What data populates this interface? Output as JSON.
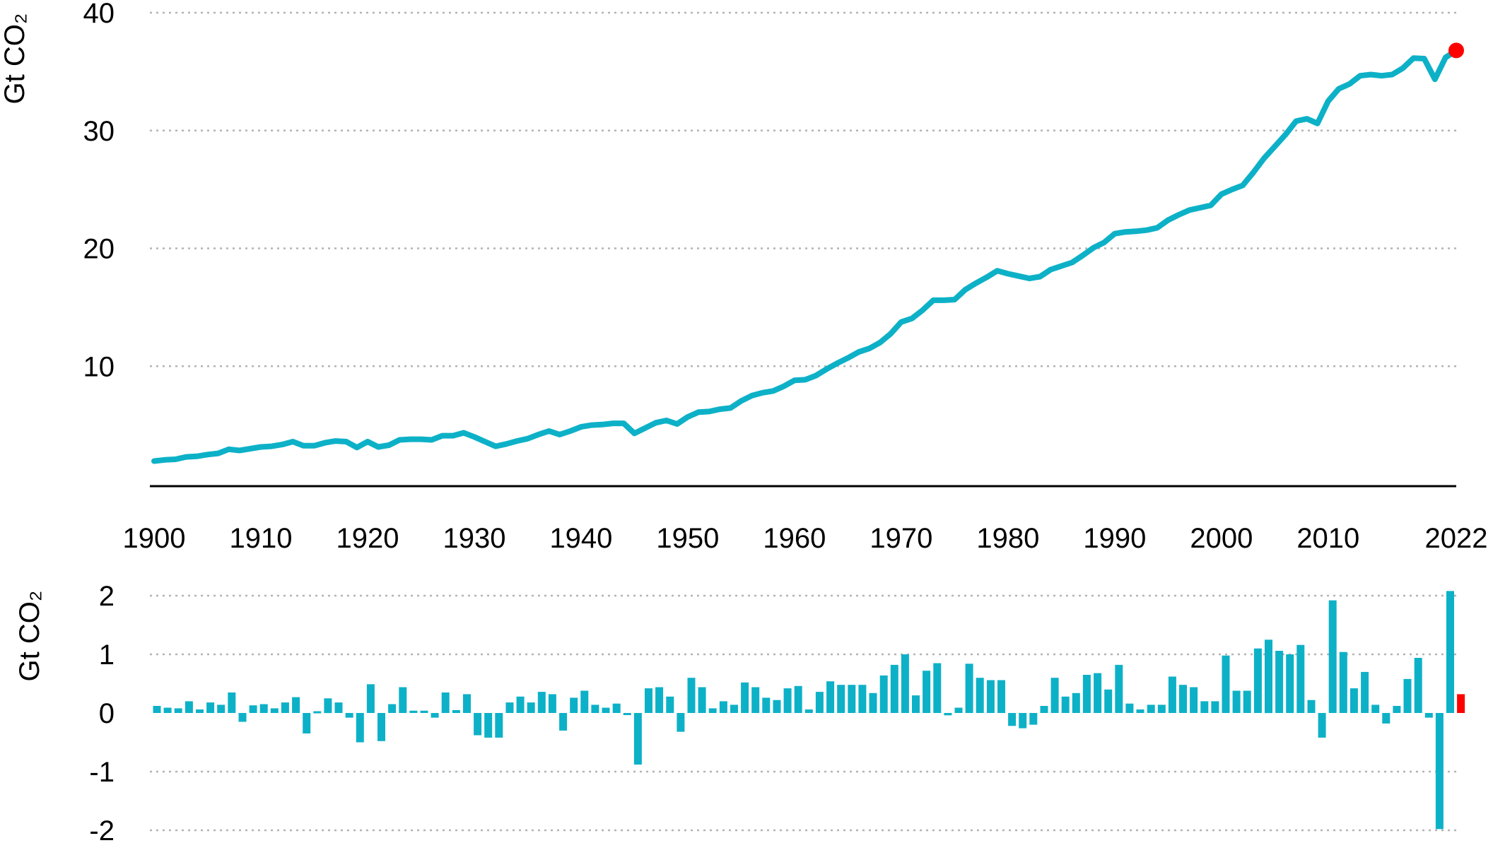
{
  "chart_data": [
    {
      "type": "line",
      "ylabel": "Gt CO₂",
      "ylim": [
        0,
        40
      ],
      "yticks": [
        10,
        20,
        30,
        40
      ],
      "xlim": [
        1900,
        2022
      ],
      "xticks": [
        "1900",
        "1910",
        "1920",
        "1930",
        "1940",
        "1950",
        "1960",
        "1970",
        "1980",
        "1990",
        "2000",
        "2010",
        "2022"
      ],
      "grid": true,
      "series": [
        {
          "color": "#0db1c7",
          "x": [
            1900,
            1901,
            1902,
            1903,
            1904,
            1905,
            1906,
            1907,
            1908,
            1909,
            1910,
            1911,
            1912,
            1913,
            1914,
            1915,
            1916,
            1917,
            1918,
            1919,
            1920,
            1921,
            1922,
            1923,
            1924,
            1925,
            1926,
            1927,
            1928,
            1929,
            1930,
            1931,
            1932,
            1933,
            1934,
            1935,
            1936,
            1937,
            1938,
            1939,
            1940,
            1941,
            1942,
            1943,
            1944,
            1945,
            1946,
            1947,
            1948,
            1949,
            1950,
            1951,
            1952,
            1953,
            1954,
            1955,
            1956,
            1957,
            1958,
            1959,
            1960,
            1961,
            1962,
            1963,
            1964,
            1965,
            1966,
            1967,
            1968,
            1969,
            1970,
            1971,
            1972,
            1973,
            1974,
            1975,
            1976,
            1977,
            1978,
            1979,
            1980,
            1981,
            1982,
            1983,
            1984,
            1985,
            1986,
            1987,
            1988,
            1989,
            1990,
            1991,
            1992,
            1993,
            1994,
            1995,
            1996,
            1997,
            1998,
            1999,
            2000,
            2001,
            2002,
            2003,
            2004,
            2005,
            2006,
            2007,
            2008,
            2009,
            2010,
            2011,
            2012,
            2013,
            2014,
            2015,
            2016,
            2017,
            2018,
            2019,
            2020,
            2021
          ],
          "values": [
            1.95,
            2.05,
            2.1,
            2.3,
            2.35,
            2.5,
            2.6,
            2.95,
            2.85,
            3.0,
            3.15,
            3.2,
            3.35,
            3.6,
            3.25,
            3.25,
            3.5,
            3.65,
            3.6,
            3.1,
            3.6,
            3.15,
            3.3,
            3.75,
            3.8,
            3.8,
            3.75,
            4.1,
            4.1,
            4.35,
            4.0,
            3.6,
            3.2,
            3.4,
            3.65,
            3.85,
            4.2,
            4.5,
            4.2,
            4.5,
            4.85,
            5.0,
            5.05,
            5.15,
            5.15,
            4.3,
            4.75,
            5.2,
            5.4,
            5.1,
            5.7,
            6.1,
            6.15,
            6.35,
            6.45,
            7.05,
            7.5,
            7.75,
            7.9,
            8.3,
            8.8,
            8.85,
            9.2,
            9.75,
            10.25,
            10.7,
            11.2,
            11.5,
            12.0,
            12.75,
            13.75,
            14.05,
            14.75,
            15.6,
            15.6,
            15.65,
            16.5,
            17.05,
            17.55,
            18.1,
            17.85,
            17.65,
            17.45,
            17.6,
            18.2,
            18.5,
            18.8,
            19.4,
            20.05,
            20.5,
            21.25,
            21.4,
            21.45,
            21.55,
            21.75,
            22.4,
            22.85,
            23.25,
            23.45,
            23.65,
            24.6,
            25.0,
            25.35,
            26.45,
            27.65,
            28.65,
            29.65,
            30.8,
            31.0,
            30.6,
            32.5,
            33.55,
            33.95,
            34.65,
            34.75,
            34.65,
            34.75,
            35.3,
            36.15,
            36.1,
            34.35,
            36.2
          ]
        },
        {
          "color": "#ff0000",
          "marker": "dot",
          "x": [
            2022
          ],
          "values": [
            36.8
          ]
        }
      ]
    },
    {
      "type": "bar",
      "ylabel": "Gt CO₂",
      "ylim": [
        -2,
        2.2
      ],
      "yticks": [
        "2",
        "1",
        "0",
        "-1",
        "-2"
      ],
      "grid": true,
      "x": [
        1901,
        1902,
        1903,
        1904,
        1905,
        1906,
        1907,
        1908,
        1909,
        1910,
        1911,
        1912,
        1913,
        1914,
        1915,
        1916,
        1917,
        1918,
        1919,
        1920,
        1921,
        1922,
        1923,
        1924,
        1925,
        1926,
        1927,
        1928,
        1929,
        1930,
        1931,
        1932,
        1933,
        1934,
        1935,
        1936,
        1937,
        1938,
        1939,
        1940,
        1941,
        1942,
        1943,
        1944,
        1945,
        1946,
        1947,
        1948,
        1949,
        1950,
        1951,
        1952,
        1953,
        1954,
        1955,
        1956,
        1957,
        1958,
        1959,
        1960,
        1961,
        1962,
        1963,
        1964,
        1965,
        1966,
        1967,
        1968,
        1969,
        1970,
        1971,
        1972,
        1973,
        1974,
        1975,
        1976,
        1977,
        1978,
        1979,
        1980,
        1981,
        1982,
        1983,
        1984,
        1985,
        1986,
        1987,
        1988,
        1989,
        1990,
        1991,
        1992,
        1993,
        1994,
        1995,
        1996,
        1997,
        1998,
        1999,
        2000,
        2001,
        2002,
        2003,
        2004,
        2005,
        2006,
        2007,
        2008,
        2009,
        2010,
        2011,
        2012,
        2013,
        2014,
        2015,
        2016,
        2017,
        2018,
        2019,
        2020,
        2021,
        2022
      ],
      "series": [
        {
          "color": "#0db1c7",
          "values": [
            0.12,
            0.09,
            0.08,
            0.2,
            0.06,
            0.18,
            0.14,
            0.35,
            -0.15,
            0.13,
            0.15,
            0.08,
            0.18,
            0.27,
            -0.35,
            0.03,
            0.25,
            0.18,
            -0.08,
            -0.5,
            0.49,
            -0.48,
            0.15,
            0.44,
            0.04,
            0.04,
            -0.08,
            0.35,
            0.05,
            0.32,
            -0.38,
            -0.42,
            -0.42,
            0.18,
            0.28,
            0.18,
            0.36,
            0.32,
            -0.3,
            0.26,
            0.38,
            0.14,
            0.09,
            0.16,
            -0.02,
            -0.88,
            0.42,
            0.44,
            0.28,
            -0.32,
            0.6,
            0.44,
            0.08,
            0.2,
            0.14,
            0.52,
            0.44,
            0.26,
            0.22,
            0.42,
            0.46,
            0.06,
            0.36,
            0.54,
            0.48,
            0.48,
            0.48,
            0.34,
            0.64,
            0.82,
            1.0,
            0.3,
            0.72,
            0.85,
            -0.04,
            0.09,
            0.84,
            0.6,
            0.56,
            0.56,
            -0.22,
            -0.26,
            -0.2,
            0.12,
            0.6,
            0.28,
            0.34,
            0.65,
            0.68,
            0.4,
            0.82,
            0.16,
            0.06,
            0.14,
            0.14,
            0.62,
            0.48,
            0.44,
            0.2,
            0.2,
            0.98,
            0.38,
            0.38,
            1.1,
            1.25,
            1.06,
            1.0,
            1.16,
            0.22,
            -0.42,
            1.92,
            1.04,
            0.42,
            0.7,
            0.14,
            -0.18,
            0.12,
            0.58,
            0.94,
            -0.08,
            -1.98,
            2.08
          ]
        },
        {
          "color": "#ff0000",
          "x": [
            2023
          ],
          "values": [
            0.32
          ]
        }
      ]
    }
  ]
}
